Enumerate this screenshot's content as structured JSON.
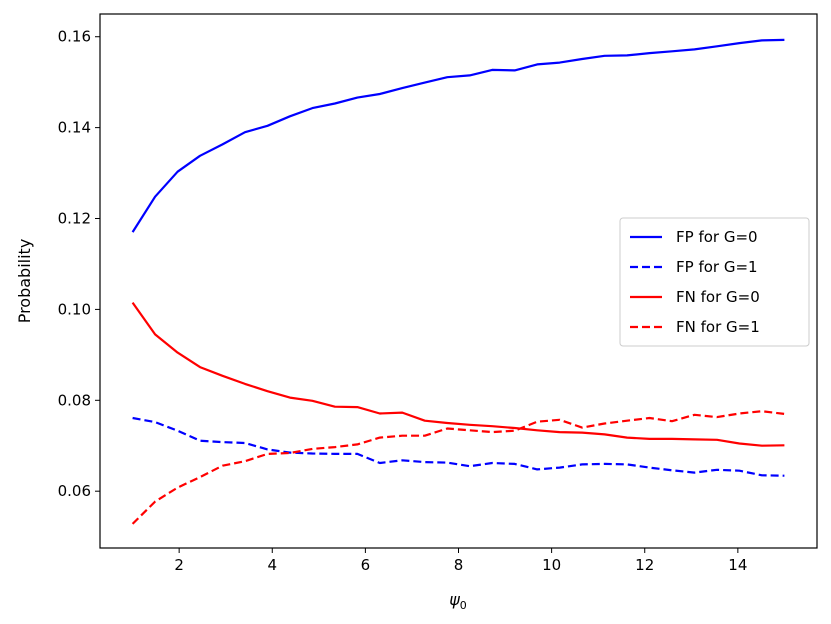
{
  "chart_data": {
    "type": "line",
    "title": "",
    "xlabel": "ψ",
    "xlabel_sub": "0",
    "ylabel": "Probability",
    "xlim": [
      0.3,
      15.7
    ],
    "ylim": [
      0.0475,
      0.165
    ],
    "x_ticks": [
      2,
      4,
      6,
      8,
      10,
      12,
      14
    ],
    "y_ticks": [
      0.06,
      0.08,
      0.1,
      0.12,
      0.14,
      0.16
    ],
    "y_tick_labels": [
      "0.06",
      "0.08",
      "0.10",
      "0.12",
      "0.14",
      "0.16"
    ],
    "grid": false,
    "legend_position": "center-right",
    "x": [
      1.0,
      1.483,
      1.966,
      2.448,
      2.931,
      3.414,
      3.897,
      4.379,
      4.862,
      5.345,
      5.828,
      6.31,
      6.793,
      7.276,
      7.759,
      8.241,
      8.724,
      9.207,
      9.69,
      10.172,
      10.655,
      11.138,
      11.621,
      12.103,
      12.586,
      13.069,
      13.552,
      14.034,
      14.517,
      15.0
    ],
    "series": [
      {
        "name": "FP for G=0",
        "color": "#0000ff",
        "dash": "solid",
        "values": [
          0.117,
          0.1248,
          0.1303,
          0.1338,
          0.1363,
          0.139,
          0.1404,
          0.1425,
          0.1443,
          0.1453,
          0.1466,
          0.1474,
          0.1487,
          0.1499,
          0.1511,
          0.1515,
          0.1527,
          0.1526,
          0.1539,
          0.1543,
          0.1551,
          0.1558,
          0.1559,
          0.1564,
          0.1568,
          0.1572,
          0.1579,
          0.1586,
          0.1592,
          0.1593
        ]
      },
      {
        "name": "FP for G=1",
        "color": "#0000ff",
        "dash": "dashed",
        "values": [
          0.0761,
          0.0752,
          0.0733,
          0.0711,
          0.0708,
          0.0706,
          0.0692,
          0.0685,
          0.0683,
          0.0682,
          0.0682,
          0.0662,
          0.0668,
          0.0664,
          0.0663,
          0.0655,
          0.0662,
          0.066,
          0.0648,
          0.0652,
          0.0659,
          0.066,
          0.0659,
          0.0652,
          0.0646,
          0.0641,
          0.0647,
          0.0645,
          0.0635,
          0.0634
        ]
      },
      {
        "name": "FN for G=0",
        "color": "#ff0000",
        "dash": "solid",
        "values": [
          0.1015,
          0.0945,
          0.0905,
          0.0873,
          0.0854,
          0.0836,
          0.082,
          0.0806,
          0.0799,
          0.0786,
          0.0785,
          0.0771,
          0.0773,
          0.0755,
          0.075,
          0.0746,
          0.0743,
          0.0739,
          0.0734,
          0.073,
          0.0729,
          0.0725,
          0.0718,
          0.0715,
          0.0715,
          0.0714,
          0.0713,
          0.0705,
          0.07,
          0.0701
        ]
      },
      {
        "name": "FN for G=1",
        "color": "#ff0000",
        "dash": "dashed",
        "values": [
          0.0528,
          0.0577,
          0.0608,
          0.0631,
          0.0656,
          0.0666,
          0.0682,
          0.0684,
          0.0693,
          0.0697,
          0.0703,
          0.0718,
          0.0722,
          0.0722,
          0.0738,
          0.0734,
          0.073,
          0.0733,
          0.0753,
          0.0757,
          0.074,
          0.0749,
          0.0755,
          0.0761,
          0.0754,
          0.0768,
          0.0763,
          0.0771,
          0.0776,
          0.077
        ]
      }
    ]
  }
}
